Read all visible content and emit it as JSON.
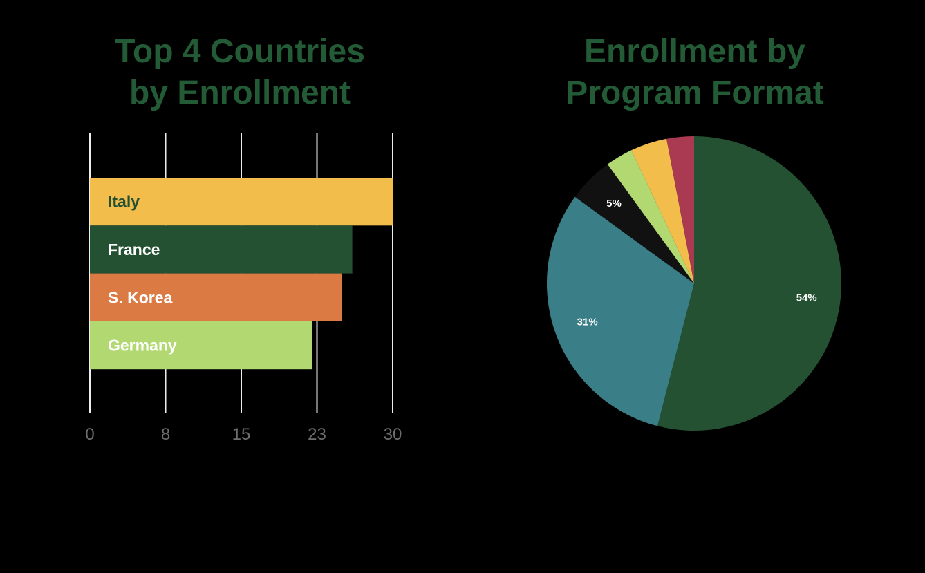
{
  "chart_data": [
    {
      "type": "bar",
      "orientation": "horizontal",
      "title_lines": [
        "Top 4 Countries",
        "by Enrollment"
      ],
      "categories": [
        "Italy",
        "France",
        "S. Korea",
        "Germany"
      ],
      "values": [
        30,
        26,
        25,
        22
      ],
      "colors": [
        "#F3BD4C",
        "#235132",
        "#DC7A44",
        "#B2D872"
      ],
      "label_colors": [
        "#235132",
        "#ffffff",
        "#ffffff",
        "#ffffff"
      ],
      "xlim": [
        0,
        30
      ],
      "ticks": [
        0,
        7.5,
        15,
        22.5,
        30
      ],
      "tick_labels": [
        "0",
        "8",
        "15",
        "23",
        "30"
      ],
      "grid": true,
      "grid_color": "#EDEDED"
    },
    {
      "type": "pie",
      "title_lines": [
        "Enrollment by",
        "Program Format"
      ],
      "values": [
        54,
        31,
        5,
        3,
        4,
        3
      ],
      "colors": [
        "#235132",
        "#3A7F88",
        "#111111",
        "#B2D872",
        "#F3BD4C",
        "#A93A52"
      ],
      "labels": [
        "54%",
        "31%",
        "5%",
        "",
        "",
        ""
      ],
      "start": "12 o'clock, clockwise"
    }
  ]
}
